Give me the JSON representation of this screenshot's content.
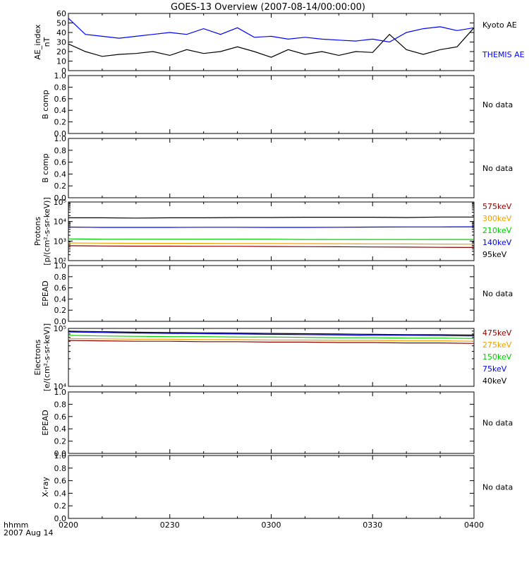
{
  "title": "GOES-13 Overview (2007-08-14/00:00:00)",
  "time_axis": {
    "label_line1": "hhmm",
    "label_line2": "2007 Aug 14",
    "ticks": [
      "0200",
      "0230",
      "0300",
      "0330",
      "0400"
    ]
  },
  "no_data_text": "No data",
  "colors": {
    "black": "#000000",
    "blue": "#0000ff",
    "green": "#00d000",
    "orange": "#f0a000",
    "darkred": "#900000",
    "axis": "#000000"
  },
  "chart_data": [
    {
      "type": "line",
      "ylabel": [
        "AE_index",
        "nT"
      ],
      "ylim": [
        0,
        60
      ],
      "yticks": [
        "0",
        "10",
        "20",
        "30",
        "40",
        "50",
        "60"
      ],
      "scale": "linear",
      "x_minutes": [
        0,
        5,
        10,
        15,
        20,
        25,
        30,
        35,
        40,
        45,
        50,
        55,
        60,
        65,
        70,
        75,
        80,
        85,
        90,
        95,
        100,
        105,
        110,
        115,
        120
      ],
      "series": [
        {
          "name": "Kyoto AE",
          "color": "black",
          "values": [
            28,
            20,
            15,
            17,
            18,
            20,
            16,
            22,
            18,
            20,
            25,
            20,
            14,
            22,
            17,
            20,
            16,
            20,
            19,
            38,
            22,
            17,
            22,
            25,
            45
          ]
        },
        {
          "name": "THEMIS AE",
          "color": "blue",
          "values": [
            55,
            38,
            36,
            34,
            36,
            38,
            40,
            38,
            44,
            38,
            45,
            35,
            36,
            33,
            35,
            33,
            32,
            31,
            33,
            30,
            40,
            44,
            46,
            42,
            45
          ]
        }
      ],
      "legend": [
        "Kyoto AE",
        "THEMIS AE"
      ]
    },
    {
      "type": "line",
      "ylabel": [
        "B comp"
      ],
      "ylim": [
        0,
        1
      ],
      "yticks": [
        "0.0",
        "0.2",
        "0.4",
        "0.6",
        "0.8",
        "1.0"
      ],
      "scale": "linear",
      "no_data": true
    },
    {
      "type": "line",
      "ylabel": [
        "B comp"
      ],
      "ylim": [
        0,
        1
      ],
      "yticks": [
        "0.0",
        "0.2",
        "0.4",
        "0.6",
        "0.8",
        "1.0"
      ],
      "scale": "linear",
      "no_data": true
    },
    {
      "type": "line",
      "ylabel": [
        "Protons",
        "[p/(cm²-s-sr-keV)]"
      ],
      "scale": "log",
      "ylim": [
        100,
        100000
      ],
      "yticks": [
        "10²",
        "10³",
        "10⁴",
        "10⁵"
      ],
      "x_minutes": [
        0,
        10,
        20,
        30,
        40,
        50,
        60,
        70,
        80,
        90,
        100,
        110,
        120
      ],
      "series": [
        {
          "name": "95keV",
          "color": "black",
          "values": [
            15500,
            15500,
            15000,
            15500,
            15500,
            16000,
            16000,
            16500,
            16500,
            16500,
            16000,
            17000,
            17000
          ]
        },
        {
          "name": "140keV",
          "color": "blue",
          "values": [
            5200,
            5000,
            5000,
            5000,
            5100,
            5100,
            5000,
            5000,
            5100,
            5200,
            5300,
            5300,
            5400
          ]
        },
        {
          "name": "210keV",
          "color": "green",
          "values": [
            1300,
            1250,
            1250,
            1250,
            1250,
            1250,
            1250,
            1200,
            1200,
            1200,
            1200,
            1200,
            1200
          ]
        },
        {
          "name": "300keV",
          "color": "orange",
          "values": [
            800,
            780,
            770,
            760,
            760,
            750,
            750,
            740,
            730,
            720,
            710,
            700,
            690
          ]
        },
        {
          "name": "575keV",
          "color": "darkred",
          "values": [
            580,
            560,
            550,
            550,
            540,
            540,
            530,
            520,
            510,
            500,
            490,
            480,
            470
          ]
        }
      ],
      "legend": [
        "575keV",
        "300keV",
        "210keV",
        "140keV",
        "95keV"
      ]
    },
    {
      "type": "line",
      "ylabel": [
        "EPEAD"
      ],
      "ylim": [
        0,
        1
      ],
      "yticks": [
        "0.0",
        "0.2",
        "0.4",
        "0.6",
        "0.8",
        "1.0"
      ],
      "scale": "linear",
      "no_data": true
    },
    {
      "type": "line",
      "ylabel": [
        "Electrons",
        "[e/(cm²-s-sr-keV)]"
      ],
      "scale": "log",
      "ylim": [
        10000,
        100000
      ],
      "yticks": [
        "10⁴",
        "10⁵"
      ],
      "x_minutes": [
        0,
        10,
        20,
        30,
        40,
        50,
        60,
        70,
        80,
        90,
        100,
        110,
        120
      ],
      "series": [
        {
          "name": "40keV",
          "color": "black",
          "values": [
            90000,
            88000,
            86000,
            85000,
            84000,
            83000,
            82000,
            81000,
            80000,
            79000,
            78000,
            78000,
            77000
          ]
        },
        {
          "name": "75keV",
          "color": "blue",
          "values": [
            87000,
            85000,
            83000,
            82000,
            81000,
            80000,
            79000,
            78000,
            77000,
            76000,
            76000,
            75000,
            74000
          ]
        },
        {
          "name": "150keV",
          "color": "green",
          "values": [
            76000,
            74000,
            73000,
            72000,
            72000,
            71000,
            71000,
            70000,
            69000,
            69000,
            68000,
            68000,
            67000
          ]
        },
        {
          "name": "275keV",
          "color": "orange",
          "values": [
            67000,
            66000,
            65000,
            65000,
            64000,
            64000,
            63000,
            63000,
            62000,
            62000,
            61000,
            61000,
            60000
          ]
        },
        {
          "name": "475keV",
          "color": "darkred",
          "values": [
            62000,
            61000,
            60000,
            60000,
            59000,
            59000,
            58000,
            58000,
            57000,
            57000,
            56000,
            56000,
            55000
          ]
        }
      ],
      "legend": [
        "475keV",
        "275keV",
        "150keV",
        "75keV",
        "40keV"
      ]
    },
    {
      "type": "line",
      "ylabel": [
        "EPEAD"
      ],
      "ylim": [
        0,
        1
      ],
      "yticks": [
        "0.0",
        "0.2",
        "0.4",
        "0.6",
        "0.8",
        "1.0"
      ],
      "scale": "linear",
      "no_data": true
    },
    {
      "type": "line",
      "ylabel": [
        "X-ray"
      ],
      "ylim": [
        0,
        1
      ],
      "yticks": [
        "0.0",
        "0.2",
        "0.4",
        "0.6",
        "0.8",
        "1.0"
      ],
      "scale": "linear",
      "no_data": true
    }
  ]
}
